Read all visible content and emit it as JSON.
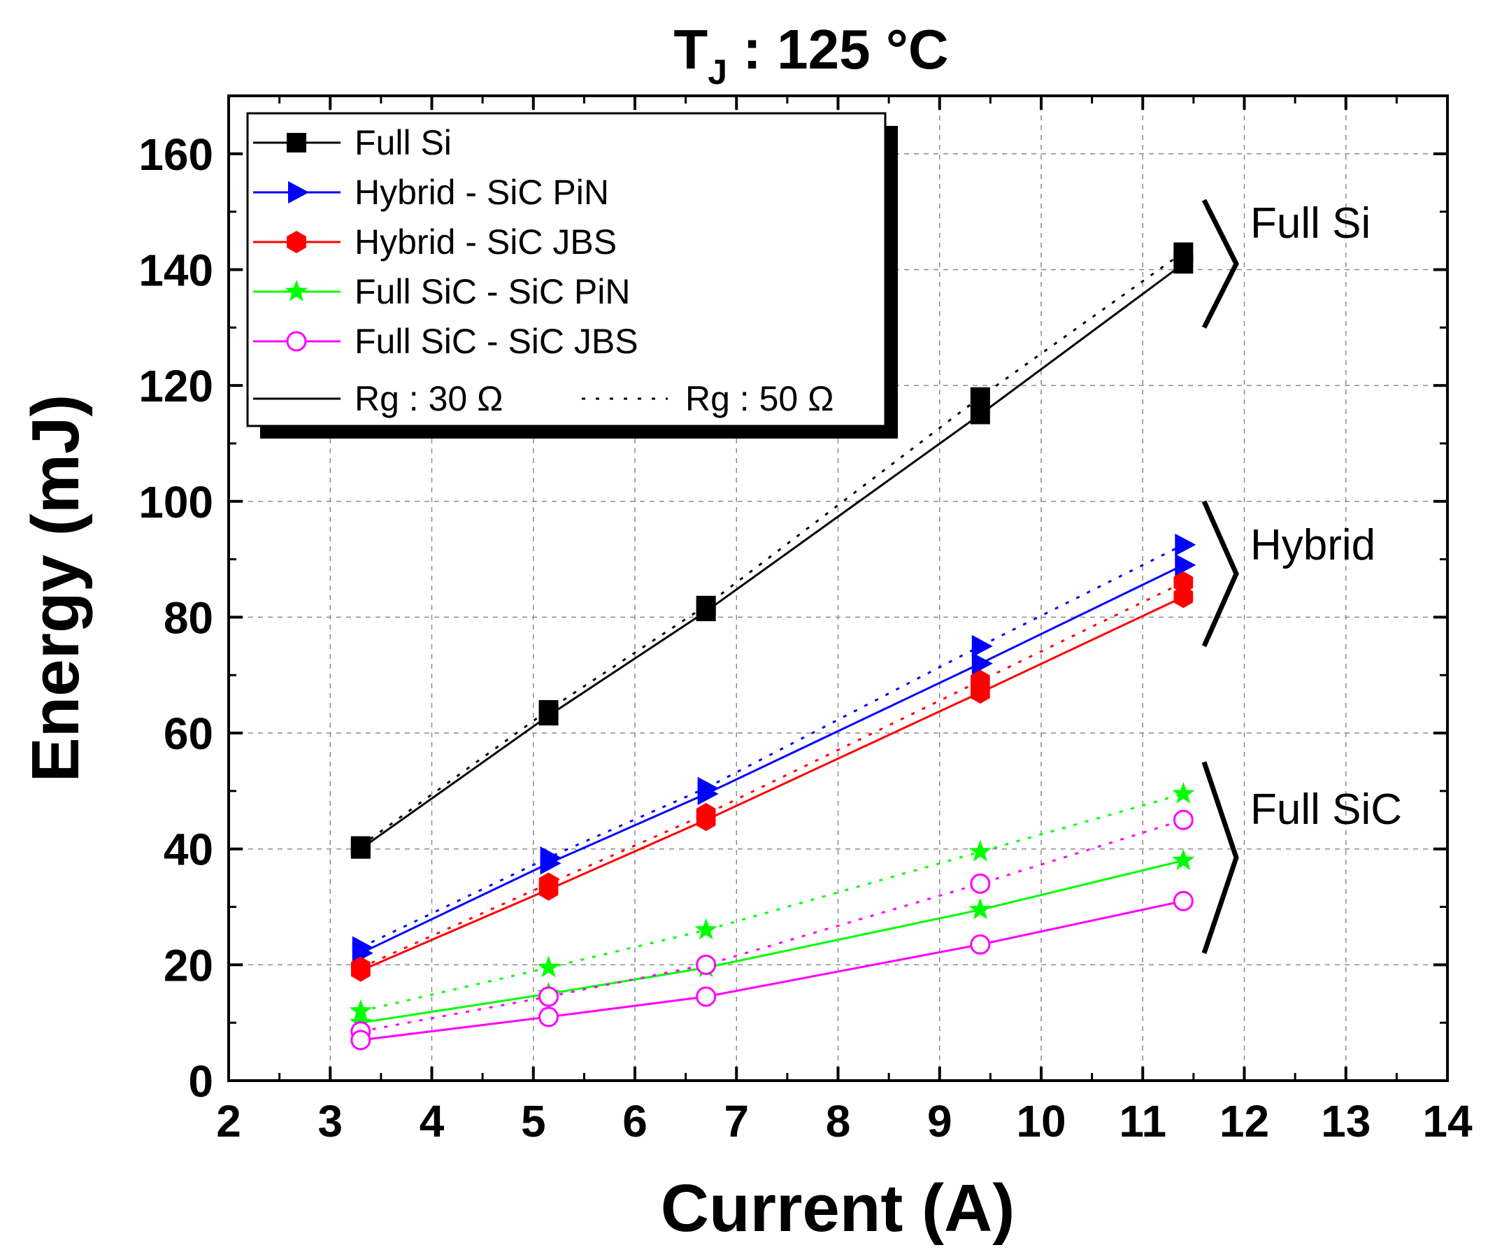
{
  "chart_data": {
    "type": "line",
    "title": "T",
    "title_subscript": "J",
    "title_rest": " : 125 °C",
    "xlabel": "Current (A)",
    "ylabel": "Energy (mJ)",
    "xlim": [
      2,
      14
    ],
    "ylim": [
      0,
      170
    ],
    "xticks": [
      "2",
      "3",
      "4",
      "5",
      "6",
      "7",
      "8",
      "9",
      "10",
      "11",
      "12",
      "13",
      "14"
    ],
    "yticks": [
      "0",
      "20",
      "40",
      "60",
      "80",
      "100",
      "120",
      "140",
      "160"
    ],
    "grid": true,
    "legend_position": "top-left",
    "legend_style_rg30": "Rg : 30 Ω",
    "legend_style_rg50": "Rg : 50 Ω",
    "x": [
      3.3,
      5.15,
      6.7,
      9.4,
      11.4
    ],
    "series": [
      {
        "name": "Full Si",
        "color": "#000000",
        "marker": "square",
        "rg30": [
          40,
          63,
          81,
          115,
          141
        ],
        "rg50": [
          40.5,
          64,
          82,
          118,
          143
        ]
      },
      {
        "name": "Hybrid - SiC PiN",
        "color": "#0000ff",
        "marker": "triangle-right",
        "rg30": [
          22,
          37.5,
          49.5,
          72,
          89
        ],
        "rg50": [
          23,
          38.5,
          50.5,
          75,
          92.5
        ]
      },
      {
        "name": "Hybrid - SiC JBS",
        "color": "#ff0000",
        "marker": "hexagon",
        "rg30": [
          19,
          33,
          45,
          67,
          83.5
        ],
        "rg50": [
          19.5,
          34,
          46,
          69,
          86
        ]
      },
      {
        "name": "Full SiC - SiC PiN",
        "color": "#00ff00",
        "marker": "star",
        "rg30": [
          10,
          15,
          19.5,
          29.5,
          38
        ],
        "rg50": [
          12,
          19.5,
          26,
          39.5,
          49.5
        ]
      },
      {
        "name": "Full SiC - SiC JBS",
        "color": "#ff00ff",
        "marker": "circle-open",
        "rg30": [
          7,
          11,
          14.5,
          23.5,
          31
        ],
        "rg50": [
          8.5,
          14.5,
          20,
          34,
          45
        ]
      }
    ],
    "annotations": [
      {
        "text": "Full Si",
        "y_range": [
          130,
          152
        ]
      },
      {
        "text": "Hybrid",
        "y_range": [
          75,
          100
        ]
      },
      {
        "text": "Full SiC",
        "y_range": [
          22,
          55
        ]
      }
    ]
  }
}
